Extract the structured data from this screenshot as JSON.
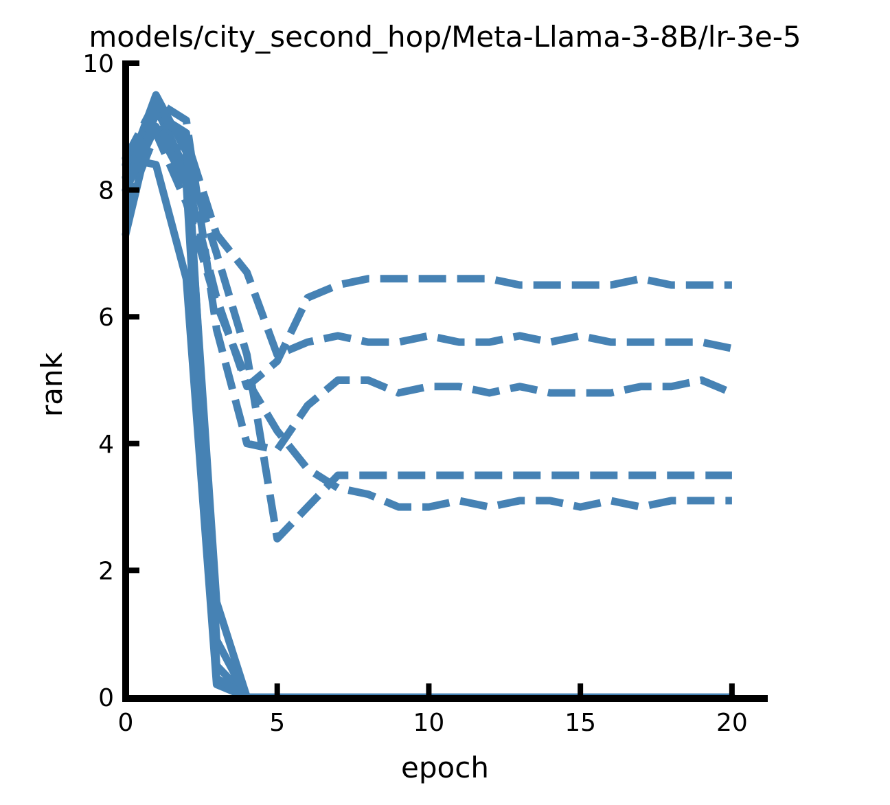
{
  "chart_data": {
    "type": "line",
    "title": "models/city_second_hop/Meta-Llama-3-8B/lr-3e-5",
    "xlabel": "epoch",
    "ylabel": "rank",
    "xlim": [
      0,
      21
    ],
    "ylim": [
      0,
      10
    ],
    "xticks": [
      "0",
      "5",
      "10",
      "15",
      "20"
    ],
    "yticks": [
      "0",
      "2",
      "4",
      "6",
      "8",
      "10"
    ],
    "grid": false,
    "legend": "none",
    "line_color": "#4682b4",
    "series": [
      {
        "style": "solid",
        "x": [
          0,
          1,
          2,
          3,
          4,
          5,
          6,
          7,
          8,
          9,
          10,
          11,
          12,
          13,
          14,
          15,
          16,
          17,
          18,
          19,
          20
        ],
        "y": [
          8.2,
          9.5,
          8.6,
          1.5,
          0,
          0,
          0,
          0,
          0,
          0,
          0,
          0,
          0,
          0,
          0,
          0,
          0,
          0,
          0,
          0,
          0
        ]
      },
      {
        "style": "solid",
        "x": [
          0,
          1,
          2,
          3,
          4,
          5,
          6,
          7,
          8,
          9,
          10,
          11,
          12,
          13,
          14,
          15,
          16,
          17,
          18,
          19,
          20
        ],
        "y": [
          8.5,
          8.4,
          6.6,
          0.2,
          0,
          0,
          0,
          0,
          0,
          0,
          0,
          0,
          0,
          0,
          0,
          0,
          0,
          0,
          0,
          0,
          0
        ]
      },
      {
        "style": "solid",
        "x": [
          0,
          1,
          2,
          3,
          4,
          5,
          6,
          7,
          8,
          9,
          10,
          11,
          12,
          13,
          14,
          15,
          16,
          17,
          18,
          19,
          20
        ],
        "y": [
          7.3,
          9.3,
          8.3,
          0.5,
          0,
          0,
          0,
          0,
          0,
          0,
          0,
          0,
          0,
          0,
          0,
          0,
          0,
          0,
          0,
          0,
          0
        ]
      },
      {
        "style": "solid",
        "x": [
          0,
          1,
          2,
          3,
          4,
          5,
          6,
          7,
          8,
          9,
          10,
          11,
          12,
          13,
          14,
          15,
          16,
          17,
          18,
          19,
          20
        ],
        "y": [
          8.0,
          9.2,
          8.9,
          0.9,
          0,
          0,
          0,
          0,
          0,
          0,
          0,
          0,
          0,
          0,
          0,
          0,
          0,
          0,
          0,
          0,
          0
        ]
      },
      {
        "style": "solid",
        "x": [
          0,
          1,
          2,
          3,
          4,
          5,
          6,
          7,
          8,
          9,
          10,
          11,
          12,
          13,
          14,
          15,
          16,
          17,
          18,
          19,
          20
        ],
        "y": [
          8.4,
          9.0,
          8.1,
          0.3,
          0,
          0,
          0,
          0,
          0,
          0,
          0,
          0,
          0,
          0,
          0,
          0,
          0,
          0,
          0,
          0,
          0
        ]
      },
      {
        "style": "dashed",
        "x": [
          0,
          1,
          2,
          3,
          4,
          5,
          6,
          7,
          8,
          9,
          10,
          11,
          12,
          13,
          14,
          15,
          16,
          17,
          18,
          19,
          20
        ],
        "y": [
          8.1,
          9.1,
          8.2,
          6.3,
          4.9,
          5.3,
          6.3,
          6.5,
          6.6,
          6.6,
          6.6,
          6.6,
          6.6,
          6.5,
          6.5,
          6.5,
          6.5,
          6.6,
          6.5,
          6.5,
          6.5
        ]
      },
      {
        "style": "dashed",
        "x": [
          0,
          1,
          2,
          3,
          4,
          5,
          6,
          7,
          8,
          9,
          10,
          11,
          12,
          13,
          14,
          15,
          16,
          17,
          18,
          19,
          20
        ],
        "y": [
          8.4,
          9.2,
          8.8,
          7.3,
          6.7,
          5.4,
          5.6,
          5.7,
          5.6,
          5.6,
          5.7,
          5.6,
          5.6,
          5.7,
          5.6,
          5.7,
          5.6,
          5.6,
          5.6,
          5.6,
          5.5
        ]
      },
      {
        "style": "dashed",
        "x": [
          0,
          1,
          2,
          3,
          4,
          5,
          6,
          7,
          8,
          9,
          10,
          11,
          12,
          13,
          14,
          15,
          16,
          17,
          18,
          19,
          20
        ],
        "y": [
          8.5,
          9.4,
          9.1,
          5.8,
          4.0,
          3.9,
          4.6,
          5.0,
          5.0,
          4.8,
          4.9,
          4.9,
          4.8,
          4.9,
          4.8,
          4.8,
          4.8,
          4.9,
          4.9,
          5.0,
          4.8
        ]
      },
      {
        "style": "dashed",
        "x": [
          0,
          1,
          2,
          3,
          4,
          5,
          6,
          7,
          8,
          9,
          10,
          11,
          12,
          13,
          14,
          15,
          16,
          17,
          18,
          19,
          20
        ],
        "y": [
          7.7,
          8.9,
          7.8,
          6.2,
          5.0,
          4.2,
          3.6,
          3.3,
          3.2,
          3.0,
          3.0,
          3.1,
          3.0,
          3.1,
          3.1,
          3.0,
          3.1,
          3.0,
          3.1,
          3.1,
          3.1
        ]
      },
      {
        "style": "dashed",
        "x": [
          0,
          1,
          2,
          3,
          4,
          5,
          6,
          7,
          8,
          9,
          10,
          11,
          12,
          13,
          14,
          15,
          16,
          17,
          18,
          19,
          20
        ],
        "y": [
          8.0,
          9.0,
          8.5,
          7.0,
          5.4,
          2.5,
          3.0,
          3.5,
          3.5,
          3.5,
          3.5,
          3.5,
          3.5,
          3.5,
          3.5,
          3.5,
          3.5,
          3.5,
          3.5,
          3.5,
          3.5
        ]
      }
    ]
  }
}
